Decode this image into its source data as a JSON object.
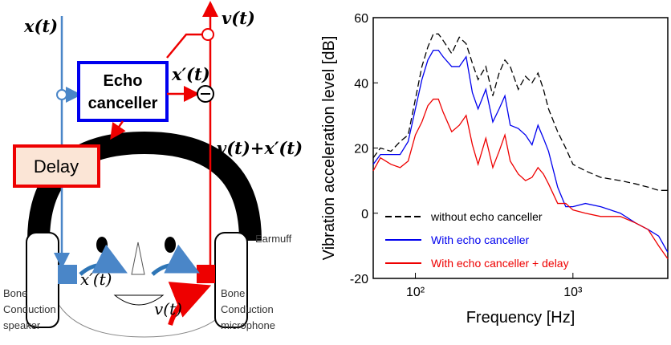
{
  "diagram": {
    "x_t": "x(t)",
    "v_t_top": "v(t)",
    "x_prime_top": "x′(t)",
    "sum": "v(t)+x′(t)",
    "echo_canceller": [
      "Echo",
      "canceller"
    ],
    "delay": "Delay",
    "earmuff": "Earmuff",
    "x_prime_face": "x′(t)",
    "v_t_face": "v(t)",
    "speaker": [
      "Bone",
      "Conduction",
      "speaker"
    ],
    "microphone": [
      "Bone",
      "Conduction",
      "microphone"
    ]
  },
  "chart_data": {
    "type": "line",
    "xlabel": "Frequency [Hz]",
    "ylabel": "Vibration acceleration level [dB]",
    "log_x": true,
    "xlim": [
      54,
      4000
    ],
    "ylim": [
      -20,
      60
    ],
    "xticks": [
      {
        "value": 100,
        "label": "10²"
      },
      {
        "value": 1000,
        "label": "10³"
      }
    ],
    "yticks": [
      -20,
      0,
      20,
      40,
      60
    ],
    "x": [
      54,
      60,
      70,
      80,
      90,
      100,
      110,
      120,
      130,
      140,
      150,
      170,
      190,
      210,
      230,
      250,
      280,
      310,
      340,
      370,
      400,
      450,
      500,
      550,
      600,
      650,
      700,
      800,
      900,
      1000,
      1200,
      1500,
      2000,
      2500,
      3000,
      3500,
      4000
    ],
    "series": [
      {
        "name": "without echo canceller",
        "color": "#000000",
        "dashed": true,
        "values": [
          17,
          20,
          19,
          22,
          24,
          35,
          45,
          51,
          55,
          55,
          53,
          49,
          54,
          52,
          46,
          41,
          45,
          36,
          43,
          47,
          45,
          38,
          42,
          40,
          43,
          38,
          32,
          25,
          20,
          15,
          13,
          11,
          10,
          9,
          8,
          7,
          7
        ]
      },
      {
        "name": "With echo canceller",
        "color": "#0000ee",
        "dashed": false,
        "values": [
          15,
          18,
          18,
          18,
          22,
          32,
          41,
          47,
          50,
          50,
          48,
          45,
          45,
          48,
          37,
          32,
          38,
          28,
          32,
          36,
          27,
          26,
          24,
          21,
          27,
          23,
          19,
          8,
          2,
          2,
          3,
          2,
          0,
          -3,
          -5,
          -7,
          -12
        ]
      },
      {
        "name": "With echo canceller + delay",
        "color": "#ee0000",
        "dashed": false,
        "values": [
          13,
          17,
          15,
          14,
          16,
          24,
          28,
          33,
          35,
          35,
          31,
          25,
          27,
          30,
          21,
          15,
          23,
          14,
          19,
          24,
          16,
          12,
          10,
          11,
          14,
          12,
          9,
          3,
          3,
          1,
          0,
          -1,
          -1,
          -3,
          -5,
          -10,
          -14
        ]
      }
    ]
  }
}
